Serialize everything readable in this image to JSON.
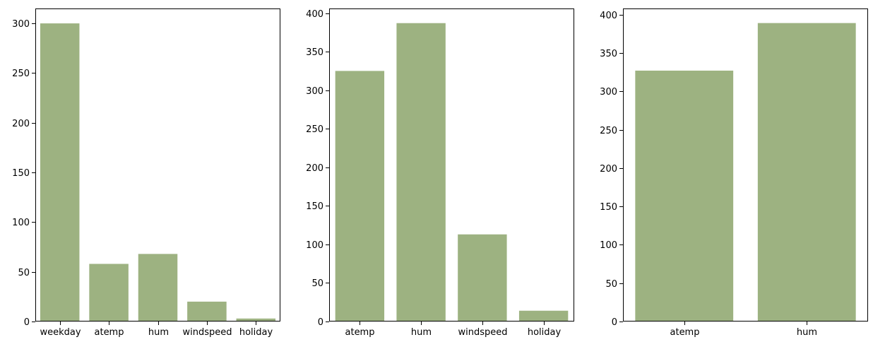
{
  "style": {
    "bar_color": "#9db281",
    "axis_color": "#000000"
  },
  "chart_data": [
    {
      "type": "bar",
      "title": "",
      "xlabel": "",
      "ylabel": "",
      "categories": [
        "weekday",
        "atemp",
        "hum",
        "windspeed",
        "holiday"
      ],
      "values": [
        300,
        58,
        68,
        20,
        3
      ],
      "ylim": [
        0,
        315
      ],
      "yticks": [
        0,
        50,
        100,
        150,
        200,
        250,
        300
      ],
      "grid": false
    },
    {
      "type": "bar",
      "title": "",
      "xlabel": "",
      "ylabel": "",
      "categories": [
        "atemp",
        "hum",
        "windspeed",
        "holiday"
      ],
      "values": [
        325,
        387,
        113,
        14
      ],
      "ylim": [
        0,
        406
      ],
      "yticks": [
        0,
        50,
        100,
        150,
        200,
        250,
        300,
        350,
        400
      ],
      "grid": false
    },
    {
      "type": "bar",
      "title": "",
      "xlabel": "",
      "ylabel": "",
      "categories": [
        "atemp",
        "hum"
      ],
      "values": [
        327,
        389
      ],
      "ylim": [
        0,
        408
      ],
      "yticks": [
        0,
        50,
        100,
        150,
        200,
        250,
        300,
        350,
        400
      ],
      "grid": false
    }
  ]
}
